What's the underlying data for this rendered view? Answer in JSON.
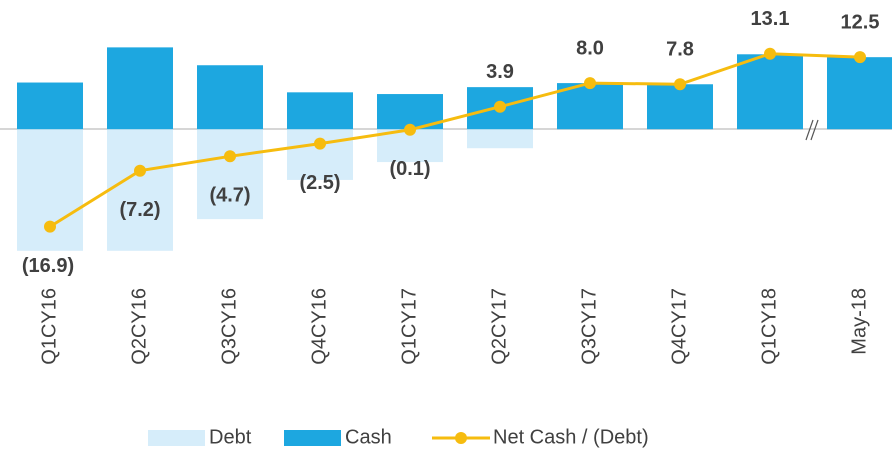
{
  "chart_data": {
    "type": "bar",
    "categories": [
      "Q1CY16",
      "Q2CY16",
      "Q3CY16",
      "Q4CY16",
      "Q1CY17",
      "Q2CY17",
      "Q3CY17",
      "Q4CY17",
      "Q1CY18",
      "May-18"
    ],
    "ylim": [
      -22,
      16
    ],
    "series": [
      {
        "name": "Debt",
        "type": "bar",
        "color": "#d6edfa",
        "values": [
          -21.1,
          -21.1,
          -15.6,
          -8.8,
          -5.7,
          -3.3,
          0,
          0,
          0,
          0
        ]
      },
      {
        "name": "Cash",
        "type": "bar",
        "color": "#1da7e0",
        "values": [
          8.1,
          14.2,
          11.1,
          6.4,
          6.1,
          7.3,
          8.0,
          7.8,
          13.0,
          12.5
        ]
      },
      {
        "name": "Net Cash / (Debt)",
        "type": "line",
        "color": "#f6bc0f",
        "values": [
          -16.9,
          -7.2,
          -4.7,
          -2.5,
          -0.1,
          3.9,
          8.0,
          7.8,
          13.1,
          12.5
        ],
        "value_labels": [
          "(16.9)",
          "(7.2)",
          "(4.7)",
          "(2.5)",
          "(0.1)",
          "3.9",
          "8.0",
          "7.8",
          "13.1",
          "12.5"
        ]
      }
    ]
  }
}
